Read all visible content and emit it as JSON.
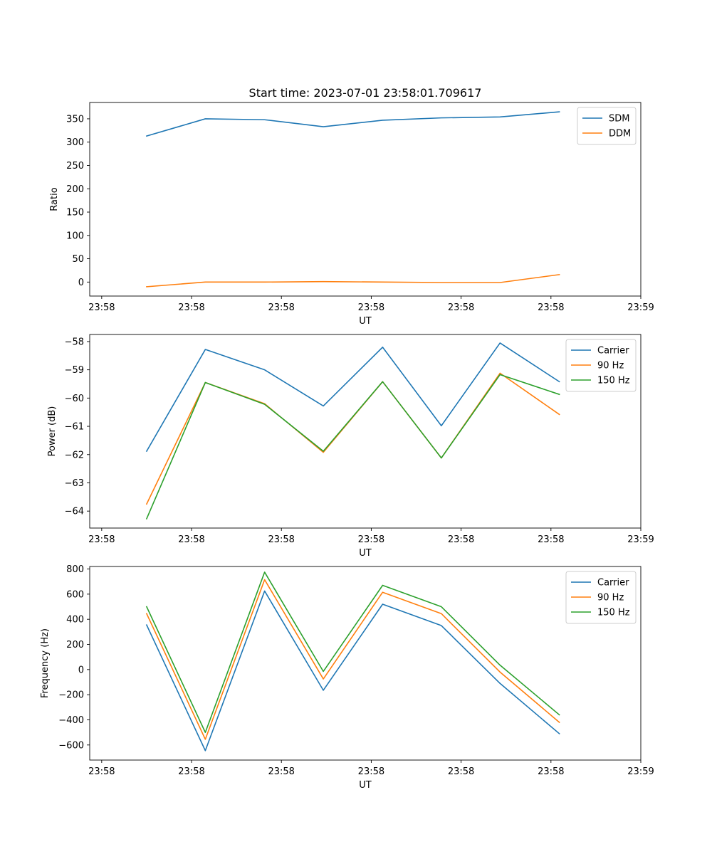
{
  "chart_data": [
    {
      "type": "line",
      "title": "Start time: 2023-07-01 23:58:01.709617",
      "xlabel": "UT",
      "ylabel": "Ratio",
      "xlim": [
        -0.2,
        9.0
      ],
      "ylim": [
        -30,
        385
      ],
      "x_ticks": [
        0,
        1.5,
        3,
        4.5,
        6,
        7.5,
        9
      ],
      "x_tick_labels": [
        "23:58",
        "23:58",
        "23:58",
        "23:58",
        "23:58",
        "23:58",
        "23:59"
      ],
      "y_ticks": [
        0,
        50,
        100,
        150,
        200,
        250,
        300,
        350
      ],
      "y_tick_labels": [
        "0",
        "50",
        "100",
        "150",
        "200",
        "250",
        "300",
        "350"
      ],
      "legend_position": "top-right",
      "x": [
        0.75,
        1.73,
        2.72,
        3.7,
        4.69,
        5.67,
        6.65,
        7.64
      ],
      "series": [
        {
          "name": "SDM",
          "color": "#1f77b4",
          "values": [
            313,
            350,
            348,
            333,
            347,
            352,
            354,
            365
          ]
        },
        {
          "name": "DDM",
          "color": "#ff7f0e",
          "values": [
            -10,
            0,
            0,
            1,
            0,
            -1,
            -1,
            16
          ]
        }
      ]
    },
    {
      "type": "line",
      "title": "",
      "xlabel": "UT",
      "ylabel": "Power (dB)",
      "xlim": [
        -0.2,
        9.0
      ],
      "ylim": [
        -64.6,
        -57.75
      ],
      "x_ticks": [
        0,
        1.5,
        3,
        4.5,
        6,
        7.5,
        9
      ],
      "x_tick_labels": [
        "23:58",
        "23:58",
        "23:58",
        "23:58",
        "23:58",
        "23:58",
        "23:59"
      ],
      "y_ticks": [
        -64,
        -63,
        -62,
        -61,
        -60,
        -59,
        -58
      ],
      "y_tick_labels": [
        "−64",
        "−63",
        "−62",
        "−61",
        "−60",
        "−59",
        "−58"
      ],
      "legend_position": "top-right",
      "x": [
        0.75,
        1.73,
        2.72,
        3.7,
        4.69,
        5.67,
        6.65,
        7.64
      ],
      "series": [
        {
          "name": "Carrier",
          "color": "#1f77b4",
          "values": [
            -61.88,
            -58.28,
            -59.0,
            -60.28,
            -58.2,
            -60.98,
            -58.05,
            -59.42
          ]
        },
        {
          "name": "90 Hz",
          "color": "#ff7f0e",
          "values": [
            -63.75,
            -59.45,
            -60.2,
            -61.92,
            -59.42,
            -62.12,
            -59.12,
            -60.58
          ]
        },
        {
          "name": "150 Hz",
          "color": "#2ca02c",
          "values": [
            -64.27,
            -59.45,
            -60.22,
            -61.88,
            -59.42,
            -62.12,
            -59.17,
            -59.87
          ]
        }
      ]
    },
    {
      "type": "line",
      "title": "",
      "xlabel": "UT",
      "ylabel": "Frequency (Hz)",
      "xlim": [
        -0.2,
        9.0
      ],
      "ylim": [
        -720,
        820
      ],
      "x_ticks": [
        0,
        1.5,
        3,
        4.5,
        6,
        7.5,
        9
      ],
      "x_tick_labels": [
        "23:58",
        "23:58",
        "23:58",
        "23:58",
        "23:58",
        "23:58",
        "23:59"
      ],
      "y_ticks": [
        -600,
        -400,
        -200,
        0,
        200,
        400,
        600,
        800
      ],
      "y_tick_labels": [
        "−600",
        "−400",
        "−200",
        "0",
        "200",
        "400",
        "600",
        "800"
      ],
      "legend_position": "top-right",
      "x": [
        0.75,
        1.73,
        2.72,
        3.7,
        4.69,
        5.67,
        6.65,
        7.64
      ],
      "series": [
        {
          "name": "Carrier",
          "color": "#1f77b4",
          "values": [
            355,
            -645,
            625,
            -165,
            520,
            350,
            -110,
            -510
          ]
        },
        {
          "name": "90 Hz",
          "color": "#ff7f0e",
          "values": [
            445,
            -555,
            715,
            -75,
            615,
            445,
            -20,
            -420
          ]
        },
        {
          "name": "150 Hz",
          "color": "#2ca02c",
          "values": [
            500,
            -500,
            775,
            -15,
            670,
            500,
            35,
            -360
          ]
        }
      ]
    }
  ]
}
